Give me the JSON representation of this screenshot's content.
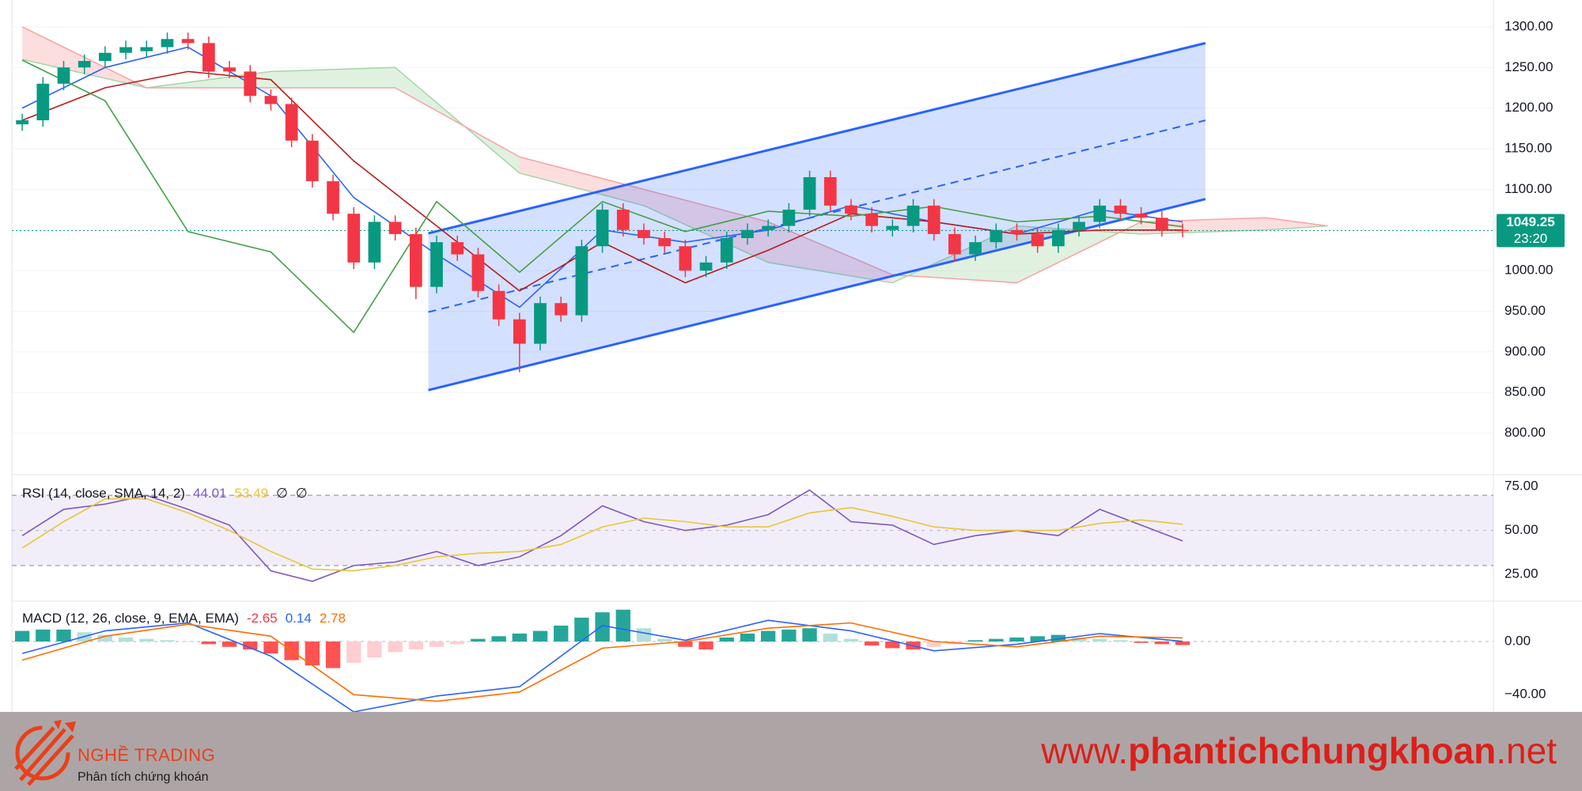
{
  "chart_data": [
    {
      "type": "candlestick",
      "x": [
        0,
        1,
        2,
        3,
        4,
        5,
        6,
        7,
        8,
        9,
        10,
        11,
        12,
        13,
        14,
        15,
        16,
        17,
        18,
        19,
        20,
        21,
        22,
        23,
        24,
        25,
        26,
        27,
        28,
        29,
        30,
        31,
        32,
        33,
        34,
        35,
        36,
        37,
        38,
        39,
        40,
        41,
        42,
        43,
        44,
        45,
        46,
        47,
        48,
        49,
        50,
        51,
        52,
        53,
        54,
        55,
        56
      ],
      "open": [
        1180,
        1185,
        1230,
        1250,
        1258,
        1268,
        1270,
        1275,
        1285,
        1280,
        1250,
        1245,
        1215,
        1205,
        1160,
        1110,
        1070,
        1010,
        1060,
        1045,
        980,
        1035,
        1020,
        975,
        940,
        910,
        960,
        945,
        1030,
        1075,
        1050,
        1040,
        1030,
        1000,
        1010,
        1040,
        1050,
        1055,
        1075,
        1115,
        1080,
        1070,
        1050,
        1055,
        1080,
        1045,
        1020,
        1035,
        1050,
        1045,
        1030,
        1050,
        1060,
        1080,
        1070,
        1065,
        1050
      ],
      "high": [
        1193,
        1238,
        1258,
        1266,
        1276,
        1283,
        1283,
        1293,
        1293,
        1288,
        1258,
        1253,
        1223,
        1213,
        1168,
        1118,
        1078,
        1068,
        1068,
        1053,
        1043,
        1043,
        1028,
        983,
        948,
        968,
        968,
        1038,
        1083,
        1083,
        1058,
        1048,
        1038,
        1018,
        1048,
        1058,
        1063,
        1083,
        1123,
        1123,
        1088,
        1078,
        1063,
        1088,
        1088,
        1053,
        1043,
        1058,
        1058,
        1053,
        1058,
        1068,
        1088,
        1088,
        1078,
        1073,
        1058
      ],
      "low": [
        1172,
        1177,
        1222,
        1242,
        1250,
        1260,
        1262,
        1267,
        1272,
        1237,
        1237,
        1207,
        1197,
        1152,
        1102,
        1062,
        1002,
        1002,
        1037,
        965,
        972,
        1012,
        967,
        932,
        875,
        902,
        937,
        937,
        1022,
        1042,
        1032,
        1022,
        992,
        992,
        1002,
        1032,
        1042,
        1047,
        1067,
        1072,
        1062,
        1047,
        1042,
        1047,
        1037,
        1012,
        1012,
        1027,
        1037,
        1022,
        1022,
        1042,
        1052,
        1062,
        1057,
        1042,
        1041.25
      ],
      "close": [
        1185,
        1230,
        1250,
        1258,
        1268,
        1275,
        1275,
        1285,
        1280,
        1245,
        1245,
        1215,
        1205,
        1160,
        1110,
        1070,
        1010,
        1060,
        1045,
        980,
        1035,
        1020,
        975,
        940,
        910,
        960,
        945,
        1030,
        1075,
        1050,
        1040,
        1030,
        1000,
        1010,
        1040,
        1050,
        1055,
        1075,
        1115,
        1080,
        1070,
        1055,
        1055,
        1080,
        1045,
        1020,
        1035,
        1050,
        1045,
        1030,
        1050,
        1060,
        1080,
        1070,
        1065,
        1050,
        1049.25
      ],
      "up_color": "#089981",
      "down_color": "#f23645",
      "xlim": [
        -0.5,
        71
      ],
      "ylim": [
        749,
        1333
      ],
      "yticks": [
        {
          "value": 800,
          "label": "800.00"
        },
        {
          "value": 850,
          "label": "850.00"
        },
        {
          "value": 900,
          "label": "900.00"
        },
        {
          "value": 950,
          "label": "950.00"
        },
        {
          "value": 1000,
          "label": "1000.00"
        },
        {
          "value": 1050,
          "label": "1050.00"
        },
        {
          "value": 1100,
          "label": "1100.00"
        },
        {
          "value": 1150,
          "label": "1150.00"
        },
        {
          "value": 1200,
          "label": "1200.00"
        },
        {
          "value": 1250,
          "label": "1250.00"
        },
        {
          "value": 1300,
          "label": "1300.00"
        }
      ],
      "grid": true,
      "countdown": "23:20",
      "overlays": [
        {
          "color": "#2962ff",
          "x": [
            0,
            4,
            8,
            12,
            16,
            20,
            24,
            28,
            32,
            36,
            40,
            44,
            48,
            52,
            56
          ],
          "values": [
            1200,
            1250,
            1275,
            1215,
            1090,
            1020,
            955,
            1050,
            1035,
            1050,
            1080,
            1060,
            1045,
            1075,
            1060
          ]
        },
        {
          "color": "#b71c1c",
          "x": [
            0,
            4,
            8,
            12,
            16,
            20,
            24,
            28,
            32,
            36,
            40,
            44,
            48,
            52,
            56
          ],
          "values": [
            1185,
            1225,
            1245,
            1235,
            1135,
            1055,
            975,
            1035,
            985,
            1025,
            1070,
            1060,
            1045,
            1050,
            1050
          ]
        },
        {
          "color": "#43a047",
          "x": [
            0,
            4,
            8,
            12,
            16,
            20,
            24,
            28,
            32,
            36,
            40,
            44,
            48,
            52,
            56
          ],
          "values": [
            1259,
            1209,
            1048,
            1023,
            924,
            1085,
            998,
            1085,
            1048,
            1073,
            1067,
            1079,
            1060,
            1067,
            1054
          ]
        }
      ],
      "cloud": {
        "x": [
          0,
          6,
          12,
          18,
          24,
          30,
          36,
          42,
          48,
          54,
          60,
          63
        ],
        "span_a": [
          1260,
          1225,
          1245,
          1250,
          1120,
          1080,
          1010,
          985,
          1055,
          1045,
          1050,
          1055
        ],
        "span_b": [
          1300,
          1225,
          1225,
          1225,
          1140,
          1100,
          1060,
          995,
          985,
          1060,
          1065,
          1055
        ],
        "up_color": "#a5d6a7",
        "down_color": "#faa1a4"
      },
      "channel": {
        "color": "#2962ff",
        "x": [
          19.6,
          57.1
        ],
        "upper": [
          1046,
          1280
        ],
        "middle": [
          949,
          1185
        ],
        "lower": [
          853,
          1088
        ]
      }
    },
    {
      "type": "line",
      "title": "RSI (14, close, SMA, 14, 2)",
      "extras": [
        "∅",
        "∅"
      ],
      "series": [
        {
          "color": "#7e57c2",
          "x": [
            0,
            2,
            4,
            6,
            8,
            10,
            12,
            14,
            16,
            18,
            20,
            22,
            24,
            26,
            28,
            30,
            32,
            34,
            36,
            38,
            40,
            42,
            44,
            46,
            48,
            50,
            52,
            54,
            56
          ],
          "values": [
            47,
            62,
            65,
            70,
            62,
            53,
            27,
            21,
            30,
            32,
            38,
            30,
            35,
            47,
            64,
            55,
            50,
            53,
            59,
            73,
            55,
            53,
            42,
            47,
            50,
            47,
            62,
            53,
            44.01
          ]
        },
        {
          "color": "#e8c53a",
          "x": [
            0,
            2,
            4,
            6,
            8,
            10,
            12,
            14,
            16,
            18,
            20,
            22,
            24,
            26,
            28,
            30,
            32,
            34,
            36,
            38,
            40,
            42,
            44,
            46,
            48,
            50,
            52,
            54,
            56
          ],
          "values": [
            40,
            55,
            68,
            68,
            60,
            50,
            38,
            28,
            27,
            30,
            35,
            37,
            38,
            42,
            52,
            57,
            55,
            52,
            52,
            60,
            63,
            58,
            52,
            50,
            50,
            50,
            54,
            56,
            53.49
          ]
        }
      ],
      "ylim": [
        9.7,
        81.8
      ],
      "yticks": [
        {
          "value": 25,
          "label": "25.00"
        },
        {
          "value": 50,
          "label": "50.00"
        },
        {
          "value": 75,
          "label": "75.00"
        }
      ],
      "bands": [
        30,
        50,
        70
      ],
      "band_color": "#7e57c2",
      "grid": false
    },
    {
      "type": "macd",
      "title": "MACD (12, 26, close, 9, EMA, EMA)",
      "histogram": {
        "x": [
          0,
          1,
          2,
          3,
          4,
          5,
          6,
          7,
          8,
          9,
          10,
          11,
          12,
          13,
          14,
          15,
          16,
          17,
          18,
          19,
          20,
          21,
          22,
          23,
          24,
          25,
          26,
          27,
          28,
          29,
          30,
          31,
          32,
          33,
          34,
          35,
          36,
          37,
          38,
          39,
          40,
          41,
          42,
          43,
          44,
          45,
          46,
          47,
          48,
          49,
          50,
          51,
          52,
          53,
          54,
          55,
          56
        ],
        "values": [
          8,
          9,
          9,
          7,
          5,
          3,
          2,
          1,
          0,
          -2,
          -4,
          -6,
          -9,
          -14,
          -18,
          -20,
          -16,
          -12,
          -8,
          -6,
          -4,
          -2,
          2,
          4,
          6,
          8,
          12,
          18,
          22,
          24,
          10,
          2,
          -4,
          -6,
          3,
          6,
          8,
          9,
          10,
          6,
          2,
          -3,
          -5,
          -6,
          -4,
          -2,
          1,
          2,
          3,
          4,
          5,
          3,
          2,
          1,
          -1,
          -2,
          -2.65
        ],
        "colors": [
          "#26a69a",
          "#b2dfdb",
          "#ffcdd2",
          "#ff5252"
        ]
      },
      "series": [
        {
          "color": "#2962ff",
          "x": [
            0,
            4,
            8,
            12,
            16,
            20,
            24,
            28,
            32,
            36,
            40,
            44,
            48,
            52,
            56
          ],
          "values": [
            -9,
            8,
            14,
            -11,
            -53,
            -41,
            -34,
            12,
            1,
            16,
            8,
            -7,
            -2,
            6,
            0.14
          ]
        },
        {
          "color": "#ff6d00",
          "x": [
            0,
            4,
            8,
            12,
            16,
            20,
            24,
            28,
            32,
            36,
            40,
            44,
            48,
            52,
            56
          ],
          "values": [
            -14,
            4,
            13,
            4,
            -40,
            -45,
            -38,
            -5,
            0,
            10,
            14,
            0,
            -4,
            4,
            2.78
          ]
        }
      ],
      "hist_label_color": "#f23645",
      "ylim": [
        -53,
        30.4
      ],
      "yticks": [
        {
          "value": -40,
          "label": "−40.00"
        },
        {
          "value": 0,
          "label": "0.00"
        }
      ],
      "zero_line": true,
      "grid": false
    }
  ],
  "footer": {
    "brand": "NGHỀ TRADING",
    "tagline": "Phân tích chứng khoán",
    "url": [
      "www.",
      "phantichchungkhoan",
      ".net"
    ]
  }
}
